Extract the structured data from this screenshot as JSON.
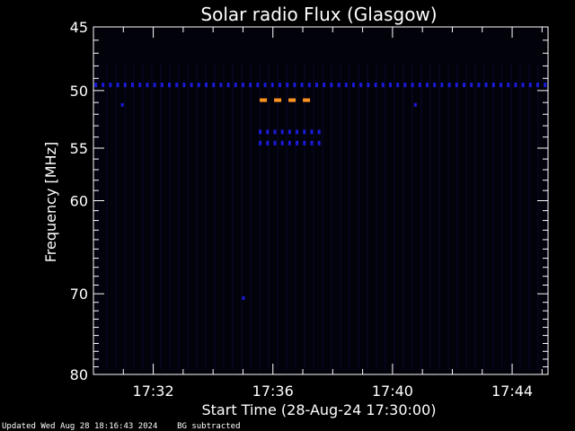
{
  "chart_data": {
    "type": "heatmap",
    "title": "Solar radio Flux (Glasgow)",
    "xlabel": "Start Time (28-Aug-24 17:30:00)",
    "ylabel": "Frequency [MHz]",
    "x_unit": "minutes after 17:30:00",
    "xlim": [
      0,
      15.2
    ],
    "ylim": [
      80,
      45
    ],
    "y_scale": "log (reciprocal-like), frequency increases downward",
    "x_ticks": [
      {
        "label": "17:32",
        "value": 2
      },
      {
        "label": "17:36",
        "value": 6
      },
      {
        "label": "17:40",
        "value": 10
      },
      {
        "label": "17:44",
        "value": 14
      }
    ],
    "y_ticks": [
      {
        "label": "45",
        "value": 45
      },
      {
        "label": "50",
        "value": 50
      },
      {
        "label": "55",
        "value": 55
      },
      {
        "label": "60",
        "value": 60
      },
      {
        "label": "70",
        "value": 70
      },
      {
        "label": "80",
        "value": 80
      }
    ],
    "colors": {
      "background": "#000000",
      "plot_background": "#02020a",
      "weak_signal": "#1a1ad8",
      "strong_signal": "#ff9420",
      "axes": "#ffffff"
    },
    "features": [
      {
        "name": "band-49.5",
        "freq_mhz": 49.5,
        "x_start": 0,
        "x_end": 15.2,
        "intensity": "weak",
        "dashed": true
      },
      {
        "name": "band-50.8",
        "freq_mhz": 50.8,
        "x_start": 5.5,
        "x_end": 7.7,
        "intensity": "strong",
        "dashed": true
      },
      {
        "name": "band-53.5",
        "freq_mhz": 53.5,
        "x_start": 5.5,
        "x_end": 7.7,
        "intensity": "weak",
        "dashed": true
      },
      {
        "name": "band-54.5",
        "freq_mhz": 54.5,
        "x_start": 5.5,
        "x_end": 7.7,
        "intensity": "weak",
        "dashed": true
      },
      {
        "name": "spot-1",
        "freq_mhz": 51.2,
        "x": 0.95,
        "intensity": "weak"
      },
      {
        "name": "spot-2",
        "freq_mhz": 51.2,
        "x": 10.75,
        "intensity": "weak"
      },
      {
        "name": "spot-3",
        "freq_mhz": 70.5,
        "x": 5.0,
        "intensity": "weak"
      }
    ]
  },
  "footer": {
    "updated": "Updated Wed Aug 28 18:16:43 2024",
    "note": "BG subtracted"
  }
}
